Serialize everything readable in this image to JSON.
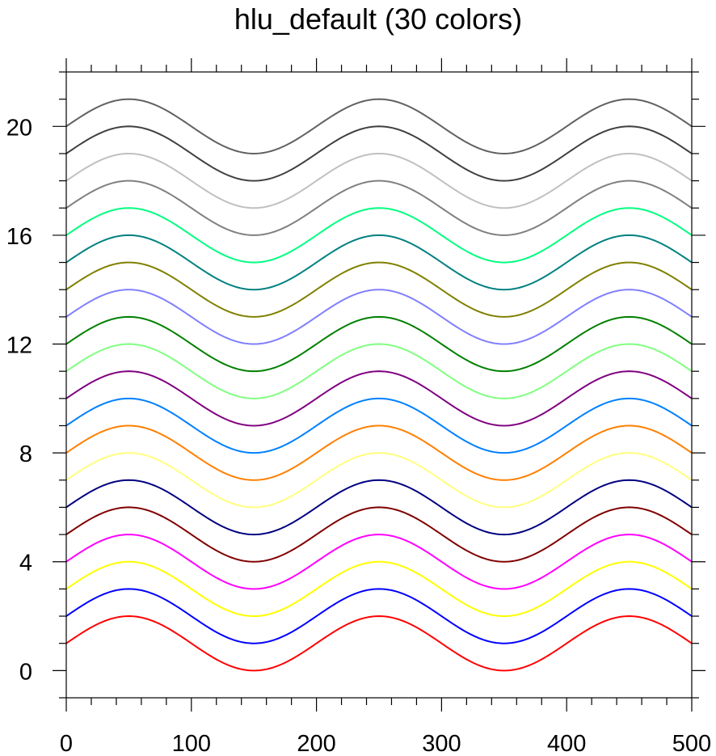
{
  "chart_data": {
    "type": "line",
    "title": "hlu_default (30 colors)",
    "xlabel": "",
    "ylabel": "",
    "xlim": [
      0,
      500
    ],
    "ylim": [
      -1,
      22
    ],
    "x_ticks": [
      0,
      100,
      200,
      300,
      400,
      500
    ],
    "y_ticks": [
      0,
      4,
      8,
      12,
      16,
      20
    ],
    "x_minor_step": 20,
    "y_minor_step": 1,
    "grid": false,
    "legend": "none",
    "curve": "y = offset + 1 + sin(2*pi*x/200)",
    "series": [
      {
        "offset": 0,
        "color": "#ff0000"
      },
      {
        "offset": 1,
        "color": "#0000ff"
      },
      {
        "offset": 2,
        "color": "#ffff00"
      },
      {
        "offset": 3,
        "color": "#ff00ff"
      },
      {
        "offset": 4,
        "color": "#800000"
      },
      {
        "offset": 5,
        "color": "#000080"
      },
      {
        "offset": 6,
        "color": "#ffff80"
      },
      {
        "offset": 7,
        "color": "#ff8000"
      },
      {
        "offset": 8,
        "color": "#0080ff"
      },
      {
        "offset": 9,
        "color": "#800080"
      },
      {
        "offset": 10,
        "color": "#80ff80"
      },
      {
        "offset": 11,
        "color": "#008000"
      },
      {
        "offset": 12,
        "color": "#8080ff"
      },
      {
        "offset": 13,
        "color": "#808000"
      },
      {
        "offset": 14,
        "color": "#008080"
      },
      {
        "offset": 15,
        "color": "#00ff80"
      },
      {
        "offset": 16,
        "color": "#808080"
      },
      {
        "offset": 17,
        "color": "#c0c0c0"
      },
      {
        "offset": 18,
        "color": "#404040"
      },
      {
        "offset": 19,
        "color": "#606060"
      }
    ]
  }
}
